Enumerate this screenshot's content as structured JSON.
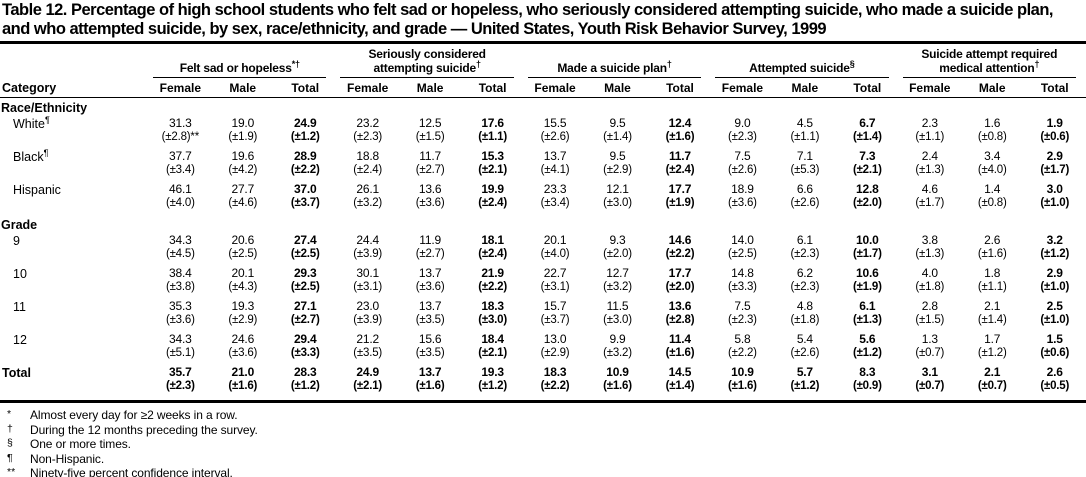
{
  "title": "Table 12. Percentage of high school students who felt sad or hopeless, who seriously considered attempting suicide, who made a suicide plan, and who attempted suicide, by sex, race/ethnicity, and grade — United States, Youth Risk Behavior Survey, 1999",
  "category_label": "Category",
  "sub_headers": [
    "Female",
    "Male",
    "Total"
  ],
  "column_groups": [
    {
      "label": "Felt sad or hopeless",
      "marker": "*†"
    },
    {
      "label": "Seriously considered attempting suicide",
      "marker": "†"
    },
    {
      "label": "Made a suicide plan",
      "marker": "†"
    },
    {
      "label": "Attempted suicide",
      "marker": "§"
    },
    {
      "label": "Suicide attempt required medical attention",
      "marker": "†"
    }
  ],
  "rows": [
    {
      "type": "section",
      "label": "Race/Ethnicity"
    },
    {
      "type": "data",
      "label": "White",
      "marker": "¶",
      "indent": true,
      "cells": [
        [
          "31.3",
          "(±2.8)**"
        ],
        [
          "19.0",
          "(±1.9)"
        ],
        [
          "24.9",
          "(±1.2)"
        ],
        [
          "23.2",
          "(±2.3)"
        ],
        [
          "12.5",
          "(±1.5)"
        ],
        [
          "17.6",
          "(±1.1)"
        ],
        [
          "15.5",
          "(±2.6)"
        ],
        [
          "9.5",
          "(±1.4)"
        ],
        [
          "12.4",
          "(±1.6)"
        ],
        [
          "9.0",
          "(±2.3)"
        ],
        [
          "4.5",
          "(±1.1)"
        ],
        [
          "6.7",
          "(±1.4)"
        ],
        [
          "2.3",
          "(±1.1)"
        ],
        [
          "1.6",
          "(±0.8)"
        ],
        [
          "1.9",
          "(±0.6)"
        ]
      ]
    },
    {
      "type": "data",
      "label": "Black",
      "marker": "¶",
      "indent": true,
      "cells": [
        [
          "37.7",
          "(±3.4)"
        ],
        [
          "19.6",
          "(±4.2)"
        ],
        [
          "28.9",
          "(±2.2)"
        ],
        [
          "18.8",
          "(±2.4)"
        ],
        [
          "11.7",
          "(±2.7)"
        ],
        [
          "15.3",
          "(±2.1)"
        ],
        [
          "13.7",
          "(±4.1)"
        ],
        [
          "9.5",
          "(±2.9)"
        ],
        [
          "11.7",
          "(±2.4)"
        ],
        [
          "7.5",
          "(±2.6)"
        ],
        [
          "7.1",
          "(±5.3)"
        ],
        [
          "7.3",
          "(±2.1)"
        ],
        [
          "2.4",
          "(±1.3)"
        ],
        [
          "3.4",
          "(±4.0)"
        ],
        [
          "2.9",
          "(±1.7)"
        ]
      ]
    },
    {
      "type": "data",
      "label": "Hispanic",
      "indent": true,
      "cells": [
        [
          "46.1",
          "(±4.0)"
        ],
        [
          "27.7",
          "(±4.6)"
        ],
        [
          "37.0",
          "(±3.7)"
        ],
        [
          "26.1",
          "(±3.2)"
        ],
        [
          "13.6",
          "(±3.6)"
        ],
        [
          "19.9",
          "(±2.4)"
        ],
        [
          "23.3",
          "(±3.4)"
        ],
        [
          "12.1",
          "(±3.0)"
        ],
        [
          "17.7",
          "(±1.9)"
        ],
        [
          "18.9",
          "(±3.6)"
        ],
        [
          "6.6",
          "(±2.6)"
        ],
        [
          "12.8",
          "(±2.0)"
        ],
        [
          "4.6",
          "(±1.7)"
        ],
        [
          "1.4",
          "(±0.8)"
        ],
        [
          "3.0",
          "(±1.0)"
        ]
      ]
    },
    {
      "type": "section",
      "label": "Grade"
    },
    {
      "type": "data",
      "label": "9",
      "indent": true,
      "cells": [
        [
          "34.3",
          "(±4.5)"
        ],
        [
          "20.6",
          "(±2.5)"
        ],
        [
          "27.4",
          "(±2.5)"
        ],
        [
          "24.4",
          "(±3.9)"
        ],
        [
          "11.9",
          "(±2.7)"
        ],
        [
          "18.1",
          "(±2.4)"
        ],
        [
          "20.1",
          "(±4.0)"
        ],
        [
          "9.3",
          "(±2.0)"
        ],
        [
          "14.6",
          "(±2.2)"
        ],
        [
          "14.0",
          "(±2.5)"
        ],
        [
          "6.1",
          "(±2.3)"
        ],
        [
          "10.0",
          "(±1.7)"
        ],
        [
          "3.8",
          "(±1.3)"
        ],
        [
          "2.6",
          "(±1.6)"
        ],
        [
          "3.2",
          "(±1.2)"
        ]
      ]
    },
    {
      "type": "data",
      "label": "10",
      "indent": true,
      "cells": [
        [
          "38.4",
          "(±3.8)"
        ],
        [
          "20.1",
          "(±4.3)"
        ],
        [
          "29.3",
          "(±2.5)"
        ],
        [
          "30.1",
          "(±3.1)"
        ],
        [
          "13.7",
          "(±3.6)"
        ],
        [
          "21.9",
          "(±2.2)"
        ],
        [
          "22.7",
          "(±3.1)"
        ],
        [
          "12.7",
          "(±3.2)"
        ],
        [
          "17.7",
          "(±2.0)"
        ],
        [
          "14.8",
          "(±3.3)"
        ],
        [
          "6.2",
          "(±2.3)"
        ],
        [
          "10.6",
          "(±1.9)"
        ],
        [
          "4.0",
          "(±1.8)"
        ],
        [
          "1.8",
          "(±1.1)"
        ],
        [
          "2.9",
          "(±1.0)"
        ]
      ]
    },
    {
      "type": "data",
      "label": "11",
      "indent": true,
      "cells": [
        [
          "35.3",
          "(±3.6)"
        ],
        [
          "19.3",
          "(±2.9)"
        ],
        [
          "27.1",
          "(±2.7)"
        ],
        [
          "23.0",
          "(±3.9)"
        ],
        [
          "13.7",
          "(±3.5)"
        ],
        [
          "18.3",
          "(±3.0)"
        ],
        [
          "15.7",
          "(±3.7)"
        ],
        [
          "11.5",
          "(±3.0)"
        ],
        [
          "13.6",
          "(±2.8)"
        ],
        [
          "7.5",
          "(±2.3)"
        ],
        [
          "4.8",
          "(±1.8)"
        ],
        [
          "6.1",
          "(±1.3)"
        ],
        [
          "2.8",
          "(±1.5)"
        ],
        [
          "2.1",
          "(±1.4)"
        ],
        [
          "2.5",
          "(±1.0)"
        ]
      ]
    },
    {
      "type": "data",
      "label": "12",
      "indent": true,
      "cells": [
        [
          "34.3",
          "(±5.1)"
        ],
        [
          "24.6",
          "(±3.6)"
        ],
        [
          "29.4",
          "(±3.3)"
        ],
        [
          "21.2",
          "(±3.5)"
        ],
        [
          "15.6",
          "(±3.5)"
        ],
        [
          "18.4",
          "(±2.1)"
        ],
        [
          "13.0",
          "(±2.9)"
        ],
        [
          "9.9",
          "(±3.2)"
        ],
        [
          "11.4",
          "(±1.6)"
        ],
        [
          "5.8",
          "(±2.2)"
        ],
        [
          "5.4",
          "(±2.6)"
        ],
        [
          "5.6",
          "(±1.2)"
        ],
        [
          "1.3",
          "(±0.7)"
        ],
        [
          "1.7",
          "(±1.2)"
        ],
        [
          "1.5",
          "(±0.6)"
        ]
      ]
    },
    {
      "type": "data",
      "label": "Total",
      "bold": true,
      "cells": [
        [
          "35.7",
          "(±2.3)"
        ],
        [
          "21.0",
          "(±1.6)"
        ],
        [
          "28.3",
          "(±1.2)"
        ],
        [
          "24.9",
          "(±2.1)"
        ],
        [
          "13.7",
          "(±1.6)"
        ],
        [
          "19.3",
          "(±1.2)"
        ],
        [
          "18.3",
          "(±2.2)"
        ],
        [
          "10.9",
          "(±1.6)"
        ],
        [
          "14.5",
          "(±1.4)"
        ],
        [
          "10.9",
          "(±1.6)"
        ],
        [
          "5.7",
          "(±1.2)"
        ],
        [
          "8.3",
          "(±0.9)"
        ],
        [
          "3.1",
          "(±0.7)"
        ],
        [
          "2.1",
          "(±0.7)"
        ],
        [
          "2.6",
          "(±0.5)"
        ]
      ]
    }
  ],
  "footnotes": [
    {
      "symbol": "*",
      "text": "Almost every day for ≥2 weeks in a row."
    },
    {
      "symbol": "†",
      "text": "During the 12 months preceding the survey."
    },
    {
      "symbol": "§",
      "text": "One or more times."
    },
    {
      "symbol": "¶",
      "text": "Non-Hispanic."
    },
    {
      "symbol": "**",
      "text": "Ninety-five percent confidence interval."
    }
  ]
}
